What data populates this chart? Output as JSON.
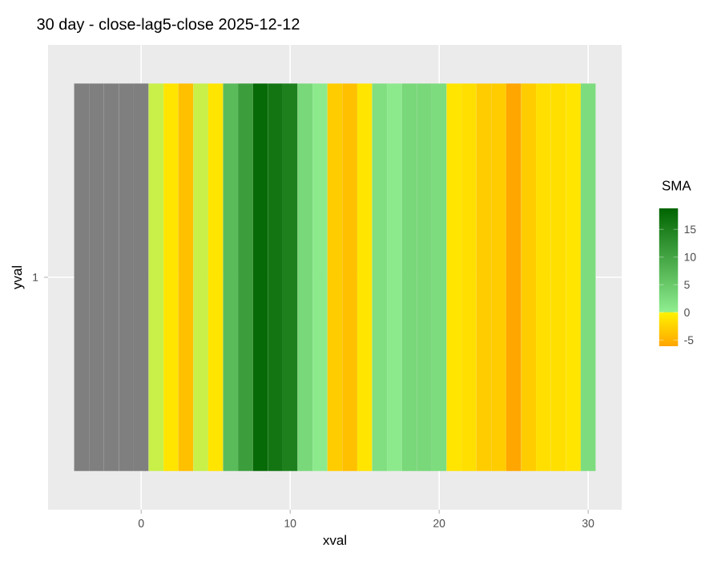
{
  "chart_data": {
    "type": "heatmap",
    "title": "30 day - close-lag5-close  2025-12-12",
    "xlabel": "xval",
    "ylabel": "yval",
    "clabel": "SMA",
    "x": [
      -4,
      -3,
      -2,
      -1,
      0,
      1,
      2,
      3,
      4,
      5,
      6,
      7,
      8,
      9,
      10,
      11,
      12,
      13,
      14,
      15,
      16,
      17,
      18,
      19,
      20,
      21,
      22,
      23,
      24,
      25,
      26,
      27,
      28,
      29,
      30
    ],
    "y_categories": [
      "1"
    ],
    "cells": [
      [
        null,
        null,
        null,
        null,
        null,
        0.0,
        -1,
        -4,
        0.0,
        -1,
        7,
        11,
        18,
        16.5,
        15,
        3,
        0.5,
        -3,
        -4,
        -1,
        2,
        0.5,
        3,
        3,
        2.5,
        -1,
        -1.5,
        -3,
        -3,
        -6,
        -3,
        -1.5,
        -1.5,
        -1,
        2.5
      ]
    ],
    "xlim": [
      -6.25,
      32.25
    ],
    "xticks": [
      0,
      10,
      20,
      30
    ],
    "clim": [
      -6.1,
      18.8
    ],
    "cticks": [
      -5,
      0,
      5,
      10,
      15
    ],
    "grid": true
  }
}
